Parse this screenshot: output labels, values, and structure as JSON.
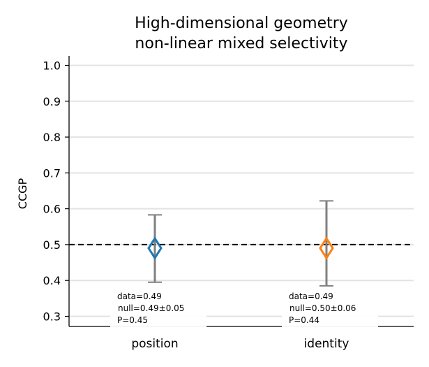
{
  "chart_data": {
    "type": "scatter",
    "title_lines": [
      "High-dimensional geometry",
      "non-linear mixed selectivity"
    ],
    "xlabel": "",
    "ylabel": "CCGP",
    "ylim": [
      0.27,
      1.02
    ],
    "yticks": [
      "0.3",
      "0.4",
      "0.5",
      "0.6",
      "0.7",
      "0.8",
      "0.9",
      "1.0"
    ],
    "grid": true,
    "chance_line": 0.5,
    "categories": [
      "position",
      "identity"
    ],
    "points": [
      {
        "category": "position",
        "value": 0.49,
        "null_mean": 0.49,
        "null_sd": 0.05,
        "error_low": 0.395,
        "error_high": 0.583,
        "color": "#1f77b4",
        "annotation": [
          "data=0.49",
          "null=0.49±0.05",
          "P=0.45"
        ]
      },
      {
        "category": "identity",
        "value": 0.49,
        "null_mean": 0.5,
        "null_sd": 0.06,
        "error_low": 0.385,
        "error_high": 0.622,
        "color": "#ff7f0e",
        "annotation": [
          "data=0.49",
          "null=0.50±0.06",
          "P=0.44"
        ]
      }
    ]
  }
}
